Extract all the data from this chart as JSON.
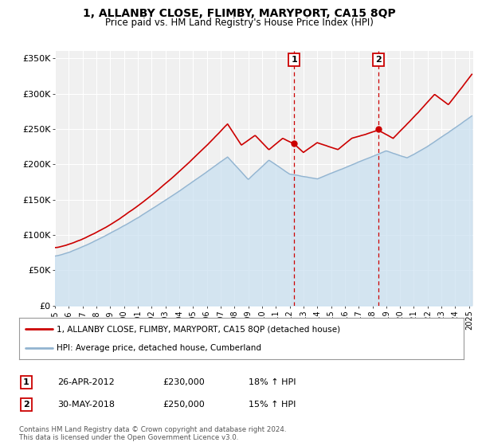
{
  "title": "1, ALLANBY CLOSE, FLIMBY, MARYPORT, CA15 8QP",
  "subtitle": "Price paid vs. HM Land Registry's House Price Index (HPI)",
  "ylim": [
    0,
    360000
  ],
  "xlim_start": 1995.0,
  "xlim_end": 2025.3,
  "yticks": [
    0,
    50000,
    100000,
    150000,
    200000,
    250000,
    300000,
    350000
  ],
  "ytick_labels": [
    "£0",
    "£50K",
    "£100K",
    "£150K",
    "£200K",
    "£250K",
    "£300K",
    "£350K"
  ],
  "xticks": [
    1995,
    1996,
    1997,
    1998,
    1999,
    2000,
    2001,
    2002,
    2003,
    2004,
    2005,
    2006,
    2007,
    2008,
    2009,
    2010,
    2011,
    2012,
    2013,
    2014,
    2015,
    2016,
    2017,
    2018,
    2019,
    2020,
    2021,
    2022,
    2023,
    2024,
    2025
  ],
  "property_color": "#cc0000",
  "hpi_color": "#92b4d0",
  "hpi_fill_color": "#c8dff0",
  "marker_color": "#cc0000",
  "sale1_x": 2012.32,
  "sale1_y": 230000,
  "sale2_x": 2018.42,
  "sale2_y": 250000,
  "vline_color": "#cc0000",
  "legend_label1": "1, ALLANBY CLOSE, FLIMBY, MARYPORT, CA15 8QP (detached house)",
  "legend_label2": "HPI: Average price, detached house, Cumberland",
  "ann1_date": "26-APR-2012",
  "ann1_price": "£230,000",
  "ann1_hpi": "18% ↑ HPI",
  "ann2_date": "30-MAY-2018",
  "ann2_price": "£250,000",
  "ann2_hpi": "15% ↑ HPI",
  "footer": "Contains HM Land Registry data © Crown copyright and database right 2024.\nThis data is licensed under the Open Government Licence v3.0.",
  "bg_color": "#ffffff",
  "plot_bg_color": "#f0f0f0",
  "grid_color": "#ffffff"
}
